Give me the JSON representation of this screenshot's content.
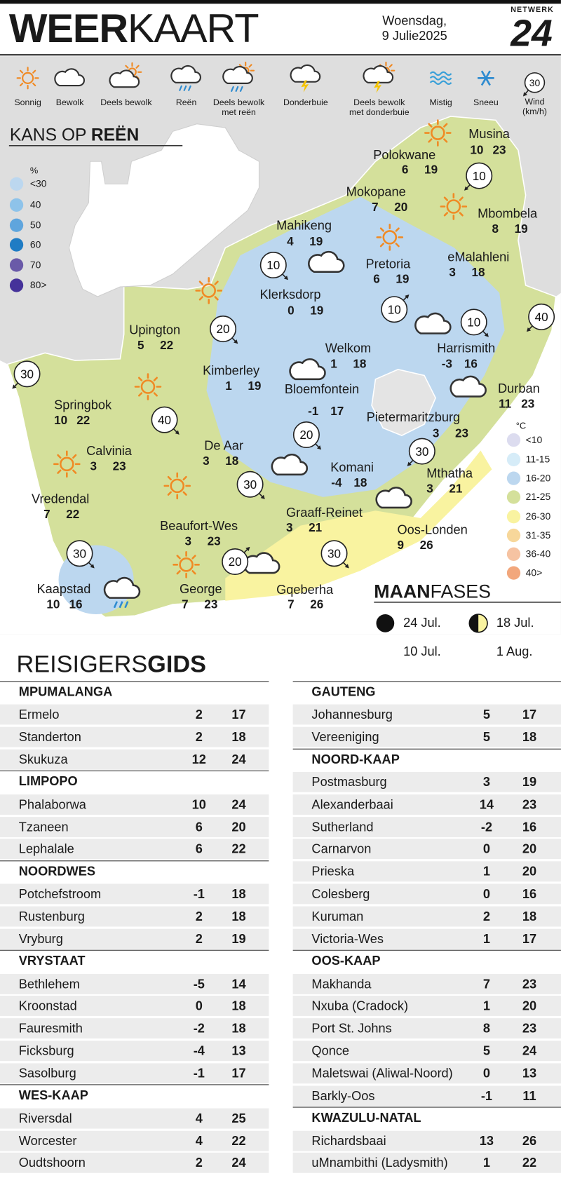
{
  "header": {
    "title_bold": "WEER",
    "title_light": "KAART",
    "day": "Woensdag,",
    "date": "9 Julie2025",
    "logo_label": "NETWERK",
    "logo_number": "24"
  },
  "icon_legend": [
    "Sonnig",
    "Bewolk",
    "Deels bewolk",
    "Reën",
    "Deels bewolk met reën",
    "Donderbuie",
    "Deels bewolk met donderbuie",
    "Mistig",
    "Sneeu",
    "Wind (km/h)"
  ],
  "wind_sample": 30,
  "rain_chance": {
    "title_light": "KANS OP",
    "title_bold": "REËN",
    "unit": "%",
    "levels": [
      {
        "label": "<30",
        "color": "#bcd7ef"
      },
      {
        "label": "40",
        "color": "#8ec3ea"
      },
      {
        "label": "50",
        "color": "#5fa5dd"
      },
      {
        "label": "60",
        "color": "#1f7cc4"
      },
      {
        "label": "70",
        "color": "#6a5aa8"
      },
      {
        "label": "80>",
        "color": "#45329a"
      }
    ]
  },
  "cities": [
    {
      "name": "Musina",
      "min": 10,
      "max": 23
    },
    {
      "name": "Polokwane",
      "min": 6,
      "max": 19
    },
    {
      "name": "Mokopane",
      "min": 7,
      "max": 20
    },
    {
      "name": "Mbombela",
      "min": 8,
      "max": 19
    },
    {
      "name": "Mahikeng",
      "min": 4,
      "max": 19
    },
    {
      "name": "Pretoria",
      "min": 6,
      "max": 19
    },
    {
      "name": "eMalahleni",
      "min": 3,
      "max": 18
    },
    {
      "name": "Klerksdorp",
      "min": 0,
      "max": 19
    },
    {
      "name": "Upington",
      "min": 5,
      "max": 22
    },
    {
      "name": "Welkom",
      "min": 1,
      "max": 18
    },
    {
      "name": "Harrismith",
      "min": -3,
      "max": 16
    },
    {
      "name": "Kimberley",
      "min": 1,
      "max": 19
    },
    {
      "name": "Bloemfontein",
      "min": -1,
      "max": 17
    },
    {
      "name": "Durban",
      "min": 11,
      "max": 23
    },
    {
      "name": "Springbok",
      "min": 10,
      "max": 22
    },
    {
      "name": "Pietermaritzburg",
      "min": 3,
      "max": 23
    },
    {
      "name": "De Aar",
      "min": 3,
      "max": 18
    },
    {
      "name": "Calvinia",
      "min": 3,
      "max": 23
    },
    {
      "name": "Komani",
      "min": -4,
      "max": 18
    },
    {
      "name": "Mthatha",
      "min": 3,
      "max": 21
    },
    {
      "name": "Vredendal",
      "min": 7,
      "max": 22
    },
    {
      "name": "Graaff-Reinet",
      "min": 3,
      "max": 21
    },
    {
      "name": "Beaufort-Wes",
      "min": 3,
      "max": 23
    },
    {
      "name": "Oos-Londen",
      "min": 9,
      "max": 26
    },
    {
      "name": "Kaapstad",
      "min": 10,
      "max": 16
    },
    {
      "name": "George",
      "min": 7,
      "max": 23
    },
    {
      "name": "Gqeberha",
      "min": 7,
      "max": 26
    }
  ],
  "wind": [
    10,
    10,
    10,
    10,
    40,
    20,
    30,
    40,
    20,
    30,
    30,
    30,
    20,
    30
  ],
  "temperature_legend": {
    "unit": "°C",
    "levels": [
      {
        "label": "<10",
        "color": "#dcdcef"
      },
      {
        "label": "11-15",
        "color": "#d6ecf8"
      },
      {
        "label": "16-20",
        "color": "#bcd7ef"
      },
      {
        "label": "21-25",
        "color": "#d4e09b"
      },
      {
        "label": "26-30",
        "color": "#f9f3a0"
      },
      {
        "label": "31-35",
        "color": "#f7d79a"
      },
      {
        "label": "36-40",
        "color": "#f6c3a2"
      },
      {
        "label": "40>",
        "color": "#f2a77c"
      }
    ]
  },
  "moon_phases": {
    "title_bold": "MAAN",
    "title_light": "FASES",
    "phases": [
      "24 Jul.",
      "18 Jul.",
      "10 Jul.",
      "1 Aug."
    ]
  },
  "travel_guide": {
    "title_light": "REISIGERS",
    "title_bold": "GIDS",
    "columns": [
      [
        {
          "region": "MPUMALANGA",
          "cities": [
            {
              "name": "Ermelo",
              "min": 2,
              "max": 17
            },
            {
              "name": "Standerton",
              "min": 2,
              "max": 18
            },
            {
              "name": "Skukuza",
              "min": 12,
              "max": 24
            }
          ]
        },
        {
          "region": "LIMPOPO",
          "cities": [
            {
              "name": "Phalaborwa",
              "min": 10,
              "max": 24
            },
            {
              "name": "Tzaneen",
              "min": 6,
              "max": 20
            },
            {
              "name": "Lephalale",
              "min": 6,
              "max": 22
            }
          ]
        },
        {
          "region": "NOORDWES",
          "cities": [
            {
              "name": "Potchefstroom",
              "min": -1,
              "max": 18
            },
            {
              "name": "Rustenburg",
              "min": 2,
              "max": 18
            },
            {
              "name": "Vryburg",
              "min": 2,
              "max": 19
            }
          ]
        },
        {
          "region": "VRYSTAAT",
          "cities": [
            {
              "name": "Bethlehem",
              "min": -5,
              "max": 14
            },
            {
              "name": "Kroonstad",
              "min": 0,
              "max": 18
            },
            {
              "name": "Fauresmith",
              "min": -2,
              "max": 18
            },
            {
              "name": "Ficksburg",
              "min": -4,
              "max": 13
            },
            {
              "name": "Sasolburg",
              "min": -1,
              "max": 17
            }
          ]
        },
        {
          "region": "WES-KAAP",
          "cities": [
            {
              "name": "Riversdal",
              "min": 4,
              "max": 25
            },
            {
              "name": "Worcester",
              "min": 4,
              "max": 22
            },
            {
              "name": "Oudtshoorn",
              "min": 2,
              "max": 24
            }
          ]
        }
      ],
      [
        {
          "region": "GAUTENG",
          "cities": [
            {
              "name": "Johannesburg",
              "min": 5,
              "max": 17
            },
            {
              "name": "Vereeniging",
              "min": 5,
              "max": 18
            }
          ]
        },
        {
          "region": "NOORD-KAAP",
          "cities": [
            {
              "name": "Postmasburg",
              "min": 3,
              "max": 19
            },
            {
              "name": "Alexanderbaai",
              "min": 14,
              "max": 23
            },
            {
              "name": "Sutherland",
              "min": -2,
              "max": 16
            },
            {
              "name": "Carnarvon",
              "min": 0,
              "max": 20
            },
            {
              "name": "Prieska",
              "min": 1,
              "max": 20
            },
            {
              "name": "Colesberg",
              "min": 0,
              "max": 16
            },
            {
              "name": "Kuruman",
              "min": 2,
              "max": 18
            },
            {
              "name": "Victoria-Wes",
              "min": 1,
              "max": 17
            }
          ]
        },
        {
          "region": "OOS-KAAP",
          "cities": [
            {
              "name": "Makhanda",
              "min": 7,
              "max": 23
            },
            {
              "name": "Nxuba (Cradock)",
              "min": 1,
              "max": 20
            },
            {
              "name": "Port St. Johns",
              "min": 8,
              "max": 23
            },
            {
              "name": "Qonce",
              "min": 5,
              "max": 24
            },
            {
              "name": "Maletswai (Aliwal-Noord)",
              "min": 0,
              "max": 13
            },
            {
              "name": "Barkly-Oos",
              "min": -1,
              "max": 11
            }
          ]
        },
        {
          "region": "KWAZULU-NATAL",
          "cities": [
            {
              "name": "Richardsbaai",
              "min": 13,
              "max": 26
            },
            {
              "name": "uMnambithi (Ladysmith)",
              "min": 1,
              "max": 22
            }
          ]
        }
      ]
    ]
  }
}
